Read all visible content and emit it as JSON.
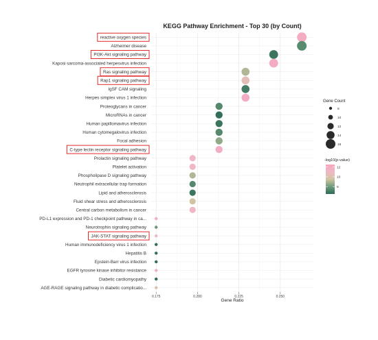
{
  "chart_data": {
    "type": "scatter",
    "title": "KEGG Pathway Enrichment - Top 30 (by Count)",
    "xlabel": "Gene Ratio",
    "ylabel": "",
    "xlim": [
      0.172,
      0.27
    ],
    "xticks": [
      "0.175",
      "0.200",
      "0.225",
      "0.250"
    ],
    "xtick_values": [
      0.175,
      0.2,
      0.225,
      0.25
    ],
    "grid": true,
    "highlight_color": "#e02a2a",
    "pathways": [
      {
        "name": "reactive oxygen species",
        "ratio": 0.263,
        "count": 16,
        "neglog10p": 12.0,
        "highlight": true
      },
      {
        "name": "Alzheimer disease",
        "ratio": 0.263,
        "count": 16,
        "neglog10p": 7.5,
        "highlight": false
      },
      {
        "name": "PI3K-Akt signaling pathway",
        "ratio": 0.246,
        "count": 15,
        "neglog10p": 6.8,
        "highlight": true
      },
      {
        "name": "Kaposi sarcoma-associated herpesvirus infection",
        "ratio": 0.246,
        "count": 15,
        "neglog10p": 12.0,
        "highlight": false
      },
      {
        "name": "Ras signaling pathway",
        "ratio": 0.229,
        "count": 14,
        "neglog10p": 9.0,
        "highlight": true
      },
      {
        "name": "Rap1 signaling pathway",
        "ratio": 0.229,
        "count": 14,
        "neglog10p": 10.4,
        "highlight": true
      },
      {
        "name": "IgSF CAM signaling",
        "ratio": 0.229,
        "count": 14,
        "neglog10p": 7.0,
        "highlight": false
      },
      {
        "name": "Herpes simplex virus 1 infection",
        "ratio": 0.229,
        "count": 14,
        "neglog10p": 12.0,
        "highlight": false
      },
      {
        "name": "Proteoglycans in cancer",
        "ratio": 0.213,
        "count": 13,
        "neglog10p": 7.4,
        "highlight": false
      },
      {
        "name": "MicroRNAs in cancer",
        "ratio": 0.213,
        "count": 13,
        "neglog10p": 6.6,
        "highlight": false
      },
      {
        "name": "Human papillomavirus infection",
        "ratio": 0.213,
        "count": 13,
        "neglog10p": 6.8,
        "highlight": false
      },
      {
        "name": "Human cytomegalovirus infection",
        "ratio": 0.213,
        "count": 13,
        "neglog10p": 7.4,
        "highlight": false
      },
      {
        "name": "Focal adhesion",
        "ratio": 0.213,
        "count": 13,
        "neglog10p": 8.5,
        "highlight": false
      },
      {
        "name": "C-type lectin receptor signaling pathway",
        "ratio": 0.213,
        "count": 13,
        "neglog10p": 11.8,
        "highlight": true
      },
      {
        "name": "Prolactin signaling pathway",
        "ratio": 0.197,
        "count": 12,
        "neglog10p": 11.0,
        "highlight": false
      },
      {
        "name": "Platelet activation",
        "ratio": 0.197,
        "count": 12,
        "neglog10p": 11.0,
        "highlight": false
      },
      {
        "name": "Phospholipase D signaling pathway",
        "ratio": 0.197,
        "count": 12,
        "neglog10p": 9.0,
        "highlight": false
      },
      {
        "name": "Neutrophil extracellular trap formation",
        "ratio": 0.197,
        "count": 12,
        "neglog10p": 7.4,
        "highlight": false
      },
      {
        "name": "Lipid and atherosclerosis",
        "ratio": 0.197,
        "count": 12,
        "neglog10p": 6.8,
        "highlight": false
      },
      {
        "name": "Fluid shear stress and atherosclerosis",
        "ratio": 0.197,
        "count": 12,
        "neglog10p": 9.5,
        "highlight": false
      },
      {
        "name": "Central carbon metabolism in cancer",
        "ratio": 0.197,
        "count": 12,
        "neglog10p": 11.0,
        "highlight": false
      },
      {
        "name": "PD-L1 expression and PD-1 checkpoint pathway in ca...",
        "ratio": 0.175,
        "count": 8,
        "neglog10p": 12.0,
        "highlight": false
      },
      {
        "name": "Neurotrophin signaling pathway",
        "ratio": 0.175,
        "count": 8,
        "neglog10p": 7.8,
        "highlight": false
      },
      {
        "name": "JAK-STAT signaling pathway",
        "ratio": 0.175,
        "count": 8,
        "neglog10p": 10.8,
        "highlight": true
      },
      {
        "name": "Human immunodeficiency virus 1 infection",
        "ratio": 0.175,
        "count": 8,
        "neglog10p": 6.6,
        "highlight": false
      },
      {
        "name": "Hepatitis B",
        "ratio": 0.175,
        "count": 8,
        "neglog10p": 6.6,
        "highlight": false
      },
      {
        "name": "Epstein-Barr virus infection",
        "ratio": 0.175,
        "count": 8,
        "neglog10p": 6.6,
        "highlight": false
      },
      {
        "name": "EGFR tyrosine kinase inhibitor resistance",
        "ratio": 0.175,
        "count": 8,
        "neglog10p": 12.0,
        "highlight": false
      },
      {
        "name": "Diabetic cardiomyopathy",
        "ratio": 0.175,
        "count": 8,
        "neglog10p": 6.6,
        "highlight": false
      },
      {
        "name": "AGE-RAGE signaling pathway in diabetic complicatio...",
        "ratio": 0.175,
        "count": 8,
        "neglog10p": 10.0,
        "highlight": false
      }
    ],
    "size_legend": {
      "title": "Gene Count",
      "values": [
        8,
        10,
        12,
        14,
        16
      ]
    },
    "color_legend": {
      "title": "-log10(p-value)",
      "ticks": [
        12,
        10,
        8
      ],
      "range": [
        6.5,
        12.5
      ],
      "colors": [
        "#2e6b55",
        "#6f9b7d",
        "#cfc5a2",
        "#f0b8c6",
        "#f4a6be"
      ]
    }
  }
}
